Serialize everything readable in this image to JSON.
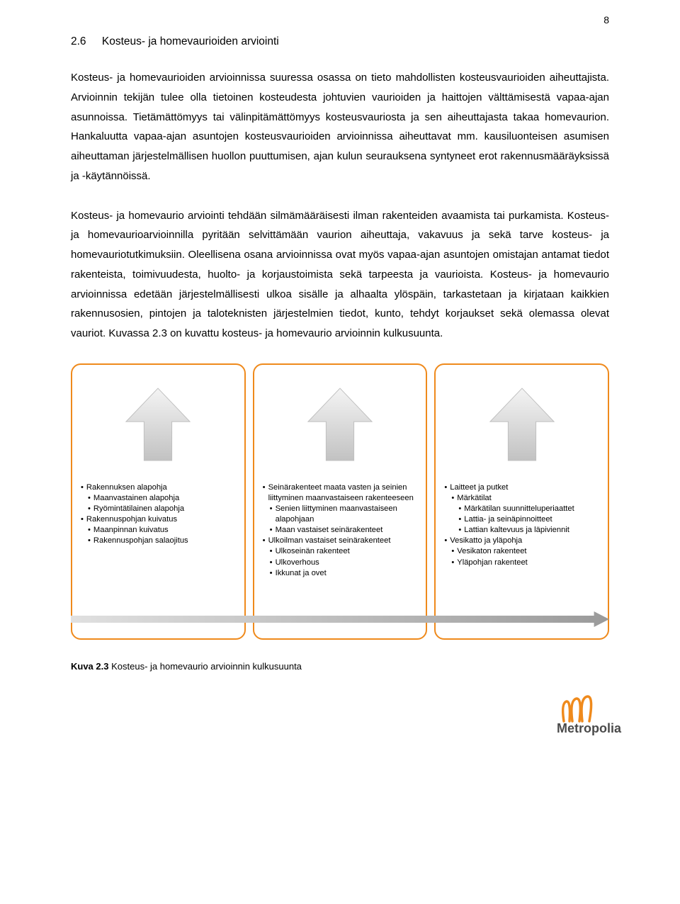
{
  "page_number": "8",
  "heading_number": "2.6",
  "heading_text": "Kosteus- ja homevaurioiden arviointi",
  "paragraphs": [
    "Kosteus- ja homevaurioiden arvioinnissa suuressa osassa on tieto mahdollisten kosteusvaurioiden aiheuttajista. Arvioinnin tekijän tulee olla tietoinen kosteudesta johtuvien vaurioiden ja haittojen välttämisestä vapaa-ajan asunnoissa. Tietämättömyys tai välinpitämättömyys kosteusvauriosta ja sen aiheuttajasta takaa homevaurion. Hankaluutta vapaa-ajan asuntojen kosteusvaurioiden arvioinnissa aiheuttavat mm. kausiluonteisen asumisen aiheuttaman järjestelmällisen huollon puuttumisen, ajan kulun seurauksena syntyneet erot rakennusmääräyksissä ja -käytännöissä.",
    "Kosteus- ja homevaurio arviointi tehdään silmämääräisesti ilman rakenteiden avaamista tai purkamista. Kosteus- ja homevaurioarvioinnilla pyritään selvittämään vaurion aiheuttaja, vakavuus ja sekä tarve kosteus- ja homevauriotutkimuksiin. Oleellisena osana arvioinnissa ovat myös vapaa-ajan asuntojen omistajan antamat tiedot rakenteista, toimivuudesta, huolto- ja korjaustoimista sekä tarpeesta ja vaurioista. Kosteus- ja homevaurio arvioinnissa edetään järjestelmällisesti ulkoa sisälle ja alhaalta ylöspäin, tarkastetaan ja kirjataan kaikkien rakennusosien, pintojen ja taloteknisten järjestelmien tiedot, kunto, tehdyt korjaukset sekä olemassa olevat vauriot. Kuvassa 2.3 on kuvattu kosteus- ja homevaurio arvioinnin kulkusuunta."
  ],
  "diagram": {
    "panel_border_color": "#ef8a1c",
    "arrow_fill_top": "#f4f4f4",
    "arrow_fill_bottom": "#c2c2c2",
    "arrow_stroke": "#bfbfbf",
    "horizontal_arrow_fill_left": "#e0e0e0",
    "horizontal_arrow_fill_right": "#9a9a9a",
    "panels": [
      {
        "items": [
          {
            "text": "Rakennuksen alapohja",
            "level": 0
          },
          {
            "text": "Maanvastainen alapohja",
            "level": 1
          },
          {
            "text": "Ryömintätilainen alapohja",
            "level": 1
          },
          {
            "text": "Rakennuspohjan kuivatus",
            "level": 0
          },
          {
            "text": "Maanpinnan kuivatus",
            "level": 1
          },
          {
            "text": "Rakennuspohjan salaojitus",
            "level": 1
          }
        ]
      },
      {
        "items": [
          {
            "text": "Seinärakenteet maata vasten ja seinien liittyminen maanvastaiseen rakenteeseen",
            "level": 0
          },
          {
            "text": "Senien liittyminen maanvastaiseen alapohjaan",
            "level": 1
          },
          {
            "text": "Maan vastaiset seinärakenteet",
            "level": 1
          },
          {
            "text": "Ulkoilman vastaiset seinärakenteet",
            "level": 0
          },
          {
            "text": "Ulkoseinän rakenteet",
            "level": 1
          },
          {
            "text": "Ulkoverhous",
            "level": 1
          },
          {
            "text": "Ikkunat ja ovet",
            "level": 1
          }
        ]
      },
      {
        "items": [
          {
            "text": "Laitteet ja putket",
            "level": 0
          },
          {
            "text": "Märkätilat",
            "level": 1
          },
          {
            "text": "Märkätilan suunnitteluperiaattet",
            "level": 2
          },
          {
            "text": "Lattia- ja seinäpinnoitteet",
            "level": 2
          },
          {
            "text": "Lattian kaltevuus ja läpiviennit",
            "level": 2
          },
          {
            "text": "Vesikatto ja yläpohja",
            "level": 0
          },
          {
            "text": "Vesikaton rakenteet",
            "level": 1
          },
          {
            "text": "Yläpohjan rakenteet",
            "level": 1
          }
        ]
      }
    ]
  },
  "caption_label": "Kuva 2.3",
  "caption_text": " Kosteus- ja homevaurio arvioinnin kulkusuunta",
  "logo": {
    "brand": "Metropolia",
    "accent_color": "#ef8a1c",
    "text_color": "#4a4a4a"
  }
}
